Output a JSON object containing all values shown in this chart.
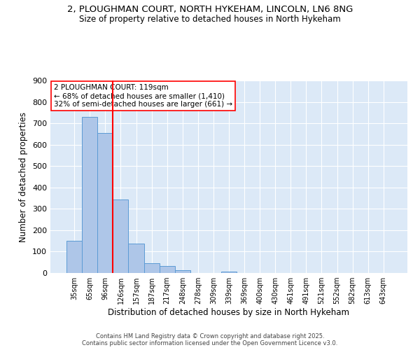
{
  "title_line1": "2, PLOUGHMAN COURT, NORTH HYKEHAM, LINCOLN, LN6 8NG",
  "title_line2": "Size of property relative to detached houses in North Hykeham",
  "xlabel": "Distribution of detached houses by size in North Hykeham",
  "ylabel": "Number of detached properties",
  "bar_labels": [
    "35sqm",
    "65sqm",
    "96sqm",
    "126sqm",
    "157sqm",
    "187sqm",
    "217sqm",
    "248sqm",
    "278sqm",
    "309sqm",
    "339sqm",
    "369sqm",
    "400sqm",
    "430sqm",
    "461sqm",
    "491sqm",
    "521sqm",
    "552sqm",
    "582sqm",
    "613sqm",
    "643sqm"
  ],
  "bar_values": [
    150,
    730,
    655,
    345,
    137,
    47,
    32,
    12,
    0,
    0,
    8,
    0,
    0,
    0,
    0,
    0,
    0,
    0,
    0,
    0,
    0
  ],
  "bar_color": "#aec6e8",
  "bar_edgecolor": "#5b9bd5",
  "bg_color": "#dce9f7",
  "grid_color": "#ffffff",
  "vline_x": 2.5,
  "vline_color": "red",
  "annotation_text": "2 PLOUGHMAN COURT: 119sqm\n← 68% of detached houses are smaller (1,410)\n32% of semi-detached houses are larger (661) →",
  "annotation_box_color": "white",
  "annotation_box_edgecolor": "red",
  "ylim": [
    0,
    900
  ],
  "yticks": [
    0,
    100,
    200,
    300,
    400,
    500,
    600,
    700,
    800,
    900
  ],
  "footer_line1": "Contains HM Land Registry data © Crown copyright and database right 2025.",
  "footer_line2": "Contains public sector information licensed under the Open Government Licence v3.0."
}
